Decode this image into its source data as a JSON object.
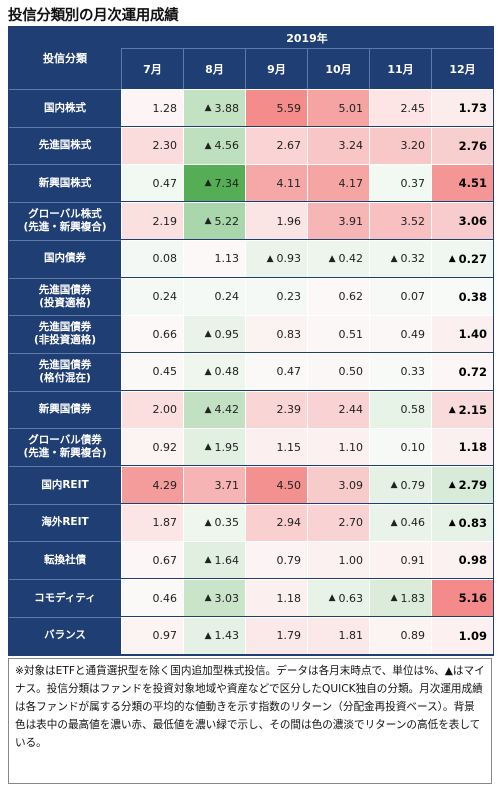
{
  "title": "投信分類別の月次運用成績",
  "header": {
    "name_label": "投信分類",
    "year_label": "2019年",
    "months": [
      "7月",
      "8月",
      "9月",
      "10月",
      "11月",
      "12月"
    ]
  },
  "rows": [
    {
      "name": [
        "国内株式"
      ],
      "values": [
        "1.28",
        "3.88",
        "5.59",
        "5.01",
        "2.45",
        "1.73"
      ],
      "neg": [
        false,
        true,
        false,
        false,
        false,
        false
      ],
      "colors": [
        "#fdf5f5",
        "#c3e2c3",
        "#f58c8c",
        "#f6a3a3",
        "#fde5e5",
        "#fceded"
      ]
    },
    {
      "name": [
        "先進国株式"
      ],
      "values": [
        "2.30",
        "4.56",
        "2.67",
        "3.24",
        "3.20",
        "2.76"
      ],
      "neg": [
        false,
        true,
        false,
        false,
        false,
        false
      ],
      "colors": [
        "#fadcdc",
        "#bfe0bf",
        "#fad4d4",
        "#f8c6c6",
        "#f8c7c7",
        "#f8cfcf"
      ]
    },
    {
      "name": [
        "新興国株式"
      ],
      "values": [
        "0.47",
        "7.34",
        "4.11",
        "4.17",
        "0.37",
        "4.51"
      ],
      "neg": [
        false,
        true,
        false,
        false,
        false,
        false
      ],
      "colors": [
        "#f2f8f2",
        "#55ad56",
        "#f6a7a7",
        "#f6a5a5",
        "#f2f8f2",
        "#f49696"
      ]
    },
    {
      "name": [
        "グローバル株式",
        "(先進・新興複合)"
      ],
      "values": [
        "2.19",
        "5.22",
        "1.96",
        "3.91",
        "3.52",
        "3.06"
      ],
      "neg": [
        false,
        true,
        false,
        false,
        false,
        false
      ],
      "colors": [
        "#fbe0e0",
        "#a9d6aa",
        "#fbe4e4",
        "#f7b6b6",
        "#f8c0c0",
        "#f8cccc"
      ]
    },
    {
      "name": [
        "国内債券"
      ],
      "values": [
        "0.08",
        "1.13",
        "0.93",
        "0.42",
        "0.32",
        "0.27"
      ],
      "neg": [
        false,
        false,
        true,
        true,
        true,
        true
      ],
      "colors": [
        "#f4f8f4",
        "#fcf8f8",
        "#eaf4ea",
        "#edf5ed",
        "#f0f7f0",
        "#f0f7f0"
      ]
    },
    {
      "name": [
        "先進国債券",
        "(投資適格)"
      ],
      "values": [
        "0.24",
        "0.24",
        "0.23",
        "0.62",
        "0.07",
        "0.38"
      ],
      "neg": [
        false,
        false,
        false,
        false,
        false,
        false
      ],
      "colors": [
        "#f5f9f5",
        "#f5f9f5",
        "#f5f9f5",
        "#fdf8f8",
        "#f6f9f6",
        "#f8faf8"
      ]
    },
    {
      "name": [
        "先進国債券",
        "(非投資適格)"
      ],
      "values": [
        "0.66",
        "0.95",
        "0.83",
        "0.51",
        "0.49",
        "1.40"
      ],
      "neg": [
        false,
        true,
        false,
        false,
        false,
        false
      ],
      "colors": [
        "#fcf8f8",
        "#e9f3e9",
        "#fbf2f2",
        "#fbf7f7",
        "#fbf7f7",
        "#fbefef"
      ]
    },
    {
      "name": [
        "先進国債券",
        "(格付混在)"
      ],
      "values": [
        "0.45",
        "0.48",
        "0.47",
        "0.50",
        "0.33",
        "0.72"
      ],
      "neg": [
        false,
        true,
        false,
        false,
        false,
        false
      ],
      "colors": [
        "#fbf8f8",
        "#eef6ee",
        "#fbf8f8",
        "#fbf7f7",
        "#f8faf8",
        "#fcf6f6"
      ]
    },
    {
      "name": [
        "新興国債券"
      ],
      "values": [
        "2.00",
        "4.42",
        "2.39",
        "2.44",
        "0.58",
        "2.15"
      ],
      "neg": [
        false,
        true,
        false,
        false,
        false,
        true
      ],
      "colors": [
        "#fbdfdf",
        "#c2e1c2",
        "#f9d5d5",
        "#f9d3d3",
        "#e8f3e8",
        "#fadbdb"
      ]
    },
    {
      "name": [
        "グローバル債券",
        "(先進・新興複合)"
      ],
      "values": [
        "0.92",
        "1.95",
        "1.15",
        "1.10",
        "0.10",
        "1.18"
      ],
      "neg": [
        false,
        true,
        false,
        false,
        false,
        false
      ],
      "colors": [
        "#fcf3f3",
        "#e2f0e2",
        "#fcefef",
        "#fcf0f0",
        "#f6f9f6",
        "#fcefef"
      ]
    },
    {
      "name": [
        "国内REIT"
      ],
      "values": [
        "4.29",
        "3.71",
        "4.50",
        "3.09",
        "0.79",
        "2.79"
      ],
      "neg": [
        false,
        false,
        false,
        false,
        true,
        true
      ],
      "colors": [
        "#f49b9b",
        "#f7b4b4",
        "#f39090",
        "#f8cbcb",
        "#e5f1e5",
        "#d8ebd8"
      ]
    },
    {
      "name": [
        "海外REIT"
      ],
      "values": [
        "1.87",
        "0.35",
        "2.94",
        "2.70",
        "0.46",
        "0.83"
      ],
      "neg": [
        false,
        true,
        false,
        false,
        true,
        true
      ],
      "colors": [
        "#fbe5e5",
        "#eef6ee",
        "#f9cfcf",
        "#f9d3d3",
        "#e9f3e9",
        "#e6f2e6"
      ]
    },
    {
      "name": [
        "転換社債"
      ],
      "values": [
        "0.67",
        "1.64",
        "0.79",
        "1.00",
        "0.91",
        "0.98"
      ],
      "neg": [
        false,
        true,
        false,
        false,
        false,
        false
      ],
      "colors": [
        "#fcf6f6",
        "#e0efe0",
        "#fcf4f4",
        "#fcf1f1",
        "#fcf2f2",
        "#fcf1f1"
      ]
    },
    {
      "name": [
        "コモディティ"
      ],
      "values": [
        "0.46",
        "3.03",
        "1.18",
        "0.63",
        "1.83",
        "5.16"
      ],
      "neg": [
        false,
        true,
        false,
        true,
        true,
        false
      ],
      "colors": [
        "#fbf8f8",
        "#c9e4c9",
        "#fcefef",
        "#e8f3e8",
        "#dbecdb",
        "#f48a8a"
      ]
    },
    {
      "name": [
        "バランス"
      ],
      "values": [
        "0.97",
        "1.43",
        "1.79",
        "1.81",
        "0.89",
        "1.09"
      ],
      "neg": [
        false,
        true,
        false,
        false,
        false,
        false
      ],
      "colors": [
        "#fcf3f3",
        "#e4f1e4",
        "#fbe8e8",
        "#fbe8e8",
        "#fcf3f3",
        "#fcf0f0"
      ]
    }
  ],
  "neg_marker": "▲",
  "note": "※対象はETFと通貨選択型を除く国内追加型株式投信。データは各月末時点で、単位は%、▲はマイナス。投信分類はファンドを投資対象地域や資産などで区分したQUICK独自の分類。月次運用成績は各ファンドが属する分類の平均的な値動きを示す指数のリターン（分配金再投資ベース）。背景色は表中の最高値を濃い赤、最低値を濃い緑で示し、その間は色の濃淡でリターンの高低を表している。"
}
